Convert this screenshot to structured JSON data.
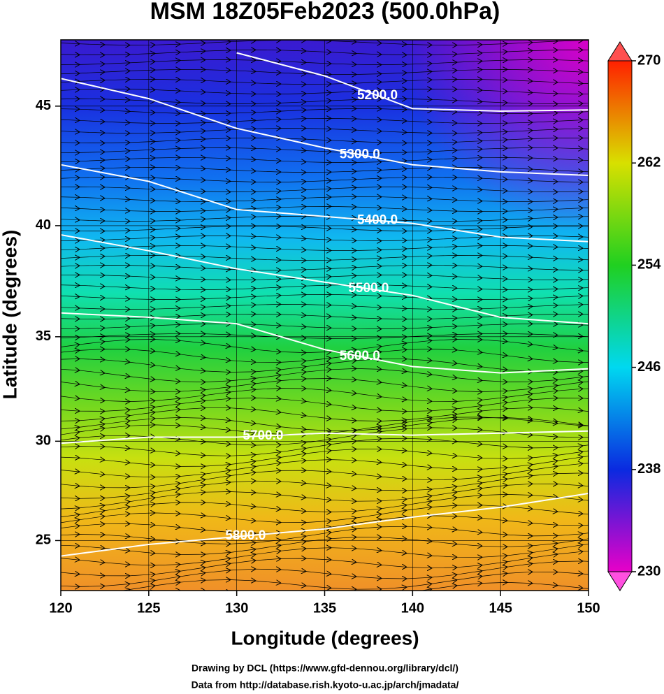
{
  "chart_data": {
    "type": "contour",
    "title": "MSM 18Z05Feb2023 (500.0hPa)",
    "xlabel": "Longitude (degrees)",
    "ylabel": "Latitude  (degrees)",
    "projection": "mercator",
    "xlim": [
      120,
      150
    ],
    "ylim": [
      22.4,
      47.6
    ],
    "xticks": [
      120,
      125,
      130,
      135,
      140,
      145,
      150
    ],
    "yticks": [
      25,
      30,
      35,
      40,
      45
    ],
    "grid": true,
    "contour_color": "#ffffff",
    "x": [
      120,
      125,
      130,
      135,
      140,
      145,
      150
    ],
    "contours": [
      {
        "level": 5200,
        "label": "5200.0",
        "values": [
          null,
          null,
          47.1,
          46.2,
          44.9,
          44.8,
          44.85
        ]
      },
      {
        "level": 5300,
        "label": "5300.0",
        "values": [
          46.1,
          45.3,
          44.1,
          43.3,
          42.6,
          42.3,
          42.15
        ]
      },
      {
        "level": 5400,
        "label": "5400.0",
        "values": [
          42.6,
          41.9,
          40.7,
          40.4,
          40.1,
          39.5,
          39.3
        ]
      },
      {
        "level": 5500,
        "label": "5500.0",
        "values": [
          39.6,
          38.9,
          38.1,
          37.5,
          36.9,
          35.9,
          35.6
        ]
      },
      {
        "level": 5600,
        "label": "5600.0",
        "values": [
          36.1,
          35.9,
          35.6,
          34.4,
          33.6,
          33.3,
          33.5
        ]
      },
      {
        "level": 5700,
        "label": "5700.0",
        "values": [
          29.9,
          30.2,
          30.2,
          30.4,
          30.3,
          30.4,
          30.5
        ]
      },
      {
        "level": 5800,
        "label": "5800.0",
        "values": [
          24.2,
          24.8,
          25.2,
          25.6,
          26.2,
          26.7,
          27.4
        ]
      }
    ],
    "colorbar": {
      "lim": [
        230,
        270
      ],
      "ticks": [
        230,
        238,
        246,
        254,
        262,
        270
      ],
      "colors": [
        "#e800c8",
        "#0a2ae0",
        "#00d8f0",
        "#20d020",
        "#d8e000",
        "#ff2000"
      ]
    },
    "credits": [
      "Drawing by DCL (https://www.gfd-dennou.org/library/dcl/)",
      "Data from http://database.rish.kyoto-u.ac.jp/arch/jmadata/"
    ]
  }
}
